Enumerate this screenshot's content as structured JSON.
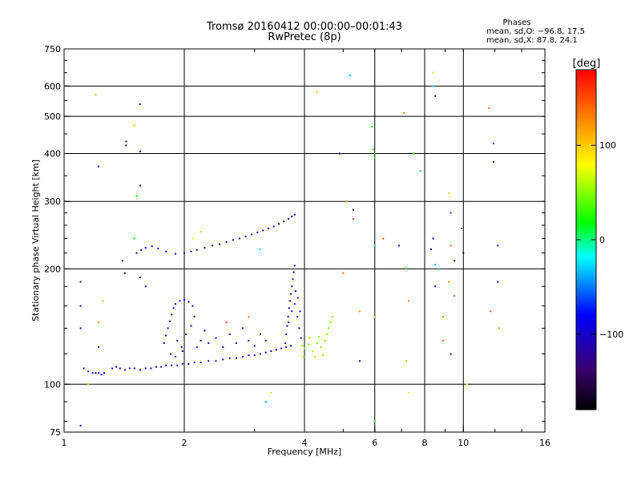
{
  "header": {
    "title_line1": "Tromsø 20160412 00:00:00–00:01:43",
    "title_line2": "RwPretec (8p)"
  },
  "stats": {
    "title": "Phases",
    "o_line": "mean, sd,O: −96.8, 17.5",
    "x_line": "mean, sd,X:  87.8, 24.1"
  },
  "colorbar": {
    "unit_label": "[deg]",
    "ticks": [
      {
        "label": "100",
        "value": 100
      },
      {
        "label": "0",
        "value": 0
      },
      {
        "label": "−100",
        "value": -100
      }
    ],
    "vmin": -180,
    "vmax": 180
  },
  "chart_data": {
    "type": "scatter",
    "xlabel": "Frequency [MHz]",
    "ylabel": "Stationary phase Virtual Height [km]",
    "x_scale": "log",
    "y_scale": "log",
    "xlim": [
      1,
      16
    ],
    "ylim": [
      75,
      750
    ],
    "x_ticks": [
      {
        "value": 1,
        "label": "1"
      },
      {
        "value": 2,
        "label": "2"
      },
      {
        "value": 4,
        "label": "4"
      },
      {
        "value": 6,
        "label": "6"
      },
      {
        "value": 8,
        "label": "8"
      },
      {
        "value": 10,
        "label": "10"
      },
      {
        "value": 16,
        "label": "16"
      }
    ],
    "y_ticks": [
      {
        "value": 75,
        "label": "75"
      },
      {
        "value": 100,
        "label": "100"
      },
      {
        "value": 200,
        "label": "200"
      },
      {
        "value": 300,
        "label": "300"
      },
      {
        "value": 400,
        "label": "400"
      },
      {
        "value": 500,
        "label": "500"
      },
      {
        "value": 600,
        "label": "600"
      },
      {
        "value": 750,
        "label": "750"
      }
    ],
    "grid_x": [
      2,
      4,
      6,
      8,
      10
    ],
    "grid_y": [
      100,
      200,
      300,
      400,
      500,
      600
    ],
    "points": [
      [
        1.12,
        110,
        -110
      ],
      [
        1.15,
        108,
        -105
      ],
      [
        1.18,
        107,
        -100
      ],
      [
        1.2,
        107,
        -108
      ],
      [
        1.22,
        107,
        -112
      ],
      [
        1.24,
        106,
        -100
      ],
      [
        1.26,
        107,
        -105
      ],
      [
        1.32,
        110,
        -110
      ],
      [
        1.35,
        111,
        -100
      ],
      [
        1.38,
        110,
        -105
      ],
      [
        1.42,
        109,
        -108
      ],
      [
        1.46,
        110,
        -112
      ],
      [
        1.5,
        110,
        -100
      ],
      [
        1.55,
        109,
        -105
      ],
      [
        1.6,
        110,
        -110
      ],
      [
        1.65,
        110,
        -100
      ],
      [
        1.7,
        111,
        -108
      ],
      [
        1.75,
        111,
        -105
      ],
      [
        1.8,
        112,
        -100
      ],
      [
        1.86,
        112,
        -110
      ],
      [
        1.92,
        112,
        -105
      ],
      [
        1.98,
        113,
        -100
      ],
      [
        2.05,
        113,
        -108
      ],
      [
        2.12,
        114,
        -105
      ],
      [
        2.2,
        114,
        -100
      ],
      [
        2.3,
        115,
        -110
      ],
      [
        2.4,
        115,
        -105
      ],
      [
        2.5,
        116,
        -100
      ],
      [
        2.6,
        117,
        -108
      ],
      [
        2.7,
        117,
        -105
      ],
      [
        2.8,
        118,
        -100
      ],
      [
        2.9,
        119,
        -110
      ],
      [
        3.0,
        119,
        -105
      ],
      [
        3.1,
        120,
        -100
      ],
      [
        3.2,
        121,
        -108
      ],
      [
        3.3,
        122,
        -105
      ],
      [
        3.4,
        123,
        -100
      ],
      [
        3.5,
        124,
        -110
      ],
      [
        3.6,
        125,
        -95
      ],
      [
        3.7,
        126,
        -90
      ],
      [
        1.78,
        128,
        -105
      ],
      [
        1.8,
        134,
        -110
      ],
      [
        1.82,
        140,
        -100
      ],
      [
        1.84,
        146,
        -108
      ],
      [
        1.86,
        152,
        -105
      ],
      [
        1.88,
        158,
        -100
      ],
      [
        1.9,
        162,
        -110
      ],
      [
        1.95,
        165,
        -105
      ],
      [
        2.0,
        166,
        -100
      ],
      [
        2.05,
        164,
        -108
      ],
      [
        2.1,
        160,
        -105
      ],
      [
        1.92,
        130,
        -100
      ],
      [
        1.97,
        125,
        -110
      ],
      [
        2.02,
        135,
        -105
      ],
      [
        2.08,
        142,
        -100
      ],
      [
        2.12,
        150,
        -108
      ],
      [
        1.85,
        120,
        -105
      ],
      [
        1.9,
        118,
        -90
      ],
      [
        1.98,
        122,
        -100
      ],
      [
        2.15,
        125,
        -110
      ],
      [
        2.2,
        130,
        -105
      ],
      [
        2.25,
        138,
        -100
      ],
      [
        2.3,
        128,
        -85
      ],
      [
        2.4,
        132,
        -105
      ],
      [
        2.5,
        125,
        -100
      ],
      [
        2.6,
        135,
        -110
      ],
      [
        2.7,
        128,
        -105
      ],
      [
        2.8,
        140,
        -100
      ],
      [
        2.9,
        130,
        -108
      ],
      [
        3.0,
        126,
        -80
      ],
      [
        3.1,
        135,
        -105
      ],
      [
        3.2,
        130,
        -100
      ],
      [
        3.58,
        128,
        -105
      ],
      [
        3.6,
        135,
        -110
      ],
      [
        3.62,
        142,
        -100
      ],
      [
        3.64,
        150,
        -108
      ],
      [
        3.66,
        158,
        -105
      ],
      [
        3.68,
        165,
        -100
      ],
      [
        3.7,
        172,
        -110
      ],
      [
        3.72,
        180,
        -105
      ],
      [
        3.74,
        188,
        -100
      ],
      [
        3.76,
        196,
        -108
      ],
      [
        3.78,
        204,
        -105
      ],
      [
        3.65,
        145,
        -100
      ],
      [
        3.72,
        155,
        -110
      ],
      [
        3.78,
        162,
        -105
      ],
      [
        3.84,
        150,
        -100
      ],
      [
        3.88,
        140,
        -108
      ],
      [
        3.92,
        132,
        -105
      ],
      [
        3.8,
        175,
        -100
      ],
      [
        3.85,
        168,
        -110
      ],
      [
        3.9,
        155,
        -105
      ],
      [
        3.95,
        126,
        40
      ],
      [
        4.0,
        124,
        50
      ],
      [
        4.1,
        127,
        45
      ],
      [
        4.2,
        122,
        55
      ],
      [
        4.3,
        128,
        45
      ],
      [
        4.4,
        125,
        50
      ],
      [
        4.5,
        130,
        40
      ],
      [
        4.55,
        135,
        55
      ],
      [
        4.6,
        140,
        45
      ],
      [
        4.65,
        145,
        50
      ],
      [
        4.7,
        150,
        40
      ],
      [
        4.25,
        118,
        55
      ],
      [
        4.45,
        119,
        45
      ],
      [
        3.98,
        118,
        50
      ],
      [
        4.12,
        132,
        60
      ],
      [
        4.35,
        133,
        45
      ],
      [
        2.0,
        220,
        -110
      ],
      [
        2.08,
        222,
        -105
      ],
      [
        2.15,
        224,
        -100
      ],
      [
        2.25,
        227,
        -108
      ],
      [
        2.35,
        230,
        -105
      ],
      [
        2.45,
        232,
        -100
      ],
      [
        2.55,
        235,
        -110
      ],
      [
        2.65,
        238,
        -105
      ],
      [
        2.75,
        240,
        -100
      ],
      [
        2.85,
        243,
        -108
      ],
      [
        2.95,
        246,
        -105
      ],
      [
        3.05,
        249,
        -100
      ],
      [
        3.15,
        252,
        -110
      ],
      [
        3.25,
        255,
        -105
      ],
      [
        3.35,
        258,
        -100
      ],
      [
        3.45,
        262,
        -108
      ],
      [
        3.55,
        266,
        -105
      ],
      [
        3.65,
        270,
        -100
      ],
      [
        3.72,
        274,
        -110
      ],
      [
        3.78,
        277,
        -105
      ],
      [
        1.52,
        220,
        -110
      ],
      [
        1.56,
        224,
        -105
      ],
      [
        1.6,
        227,
        -100
      ],
      [
        1.66,
        229,
        -108
      ],
      [
        1.72,
        226,
        -105
      ],
      [
        1.8,
        222,
        -100
      ],
      [
        1.9,
        219,
        -110
      ],
      [
        1.2,
        570,
        110
      ],
      [
        1.5,
        473,
        110
      ],
      [
        1.55,
        538,
        -110
      ],
      [
        1.55,
        405,
        -110
      ],
      [
        1.55,
        330,
        -110
      ],
      [
        1.43,
        430,
        -150
      ],
      [
        1.43,
        420,
        -150
      ],
      [
        1.22,
        370,
        -100
      ],
      [
        1.52,
        310,
        20
      ],
      [
        1.5,
        240,
        20
      ],
      [
        1.55,
        190,
        -160
      ],
      [
        1.42,
        195,
        -150
      ],
      [
        1.4,
        210,
        -150
      ],
      [
        1.6,
        180,
        -110
      ],
      [
        1.1,
        185,
        -120
      ],
      [
        1.1,
        160,
        -110
      ],
      [
        1.1,
        140,
        -110
      ],
      [
        1.22,
        125,
        -100
      ],
      [
        1.22,
        145,
        130
      ],
      [
        1.25,
        165,
        120
      ],
      [
        1.15,
        100,
        110
      ],
      [
        1.1,
        78,
        -120
      ],
      [
        2.1,
        240,
        70
      ],
      [
        2.2,
        250,
        60
      ],
      [
        2.55,
        145,
        150
      ],
      [
        2.9,
        150,
        140
      ],
      [
        3.1,
        225,
        -30
      ],
      [
        3.2,
        90,
        -20
      ],
      [
        3.3,
        95,
        100
      ],
      [
        4.3,
        580,
        110
      ],
      [
        5.2,
        640,
        -30
      ],
      [
        4.9,
        400,
        -100
      ],
      [
        5.1,
        300,
        130
      ],
      [
        5.3,
        285,
        -150
      ],
      [
        5.3,
        270,
        150
      ],
      [
        5.0,
        195,
        140
      ],
      [
        5.5,
        155,
        120
      ],
      [
        5.5,
        115,
        -130
      ],
      [
        5.9,
        470,
        20
      ],
      [
        5.95,
        410,
        30
      ],
      [
        6.0,
        400,
        20
      ],
      [
        6.0,
        390,
        40
      ],
      [
        6.0,
        230,
        -30
      ],
      [
        6.3,
        240,
        150
      ],
      [
        6.0,
        150,
        110
      ],
      [
        6.0,
        80,
        20
      ],
      [
        7.1,
        510,
        130
      ],
      [
        7.5,
        400,
        20
      ],
      [
        7.2,
        200,
        20
      ],
      [
        7.3,
        165,
        130
      ],
      [
        7.2,
        115,
        110
      ],
      [
        7.3,
        95,
        70
      ],
      [
        8.4,
        650,
        100
      ],
      [
        8.4,
        600,
        -30
      ],
      [
        8.5,
        565,
        -150
      ],
      [
        8.4,
        240,
        -80
      ],
      [
        8.5,
        205,
        -40
      ],
      [
        8.7,
        200,
        -30
      ],
      [
        8.5,
        180,
        -80
      ],
      [
        8.9,
        150,
        130
      ],
      [
        8.9,
        130,
        140
      ],
      [
        9.2,
        315,
        100
      ],
      [
        9.3,
        280,
        -60
      ],
      [
        9.3,
        230,
        140
      ],
      [
        9.5,
        210,
        -110
      ],
      [
        9.2,
        185,
        130
      ],
      [
        9.3,
        120,
        -80
      ],
      [
        9.5,
        170,
        150
      ],
      [
        9.9,
        255,
        -150
      ],
      [
        10.0,
        220,
        -160
      ],
      [
        10.2,
        100,
        80
      ],
      [
        11.6,
        525,
        140
      ],
      [
        11.9,
        425,
        -60
      ],
      [
        11.9,
        380,
        -90
      ],
      [
        12.2,
        185,
        -90
      ],
      [
        11.7,
        155,
        150
      ],
      [
        12.3,
        140,
        130
      ],
      [
        12.2,
        230,
        -70
      ],
      [
        8.3,
        225,
        -120
      ],
      [
        6.9,
        230,
        -110
      ],
      [
        7.8,
        360,
        -40
      ]
    ]
  }
}
